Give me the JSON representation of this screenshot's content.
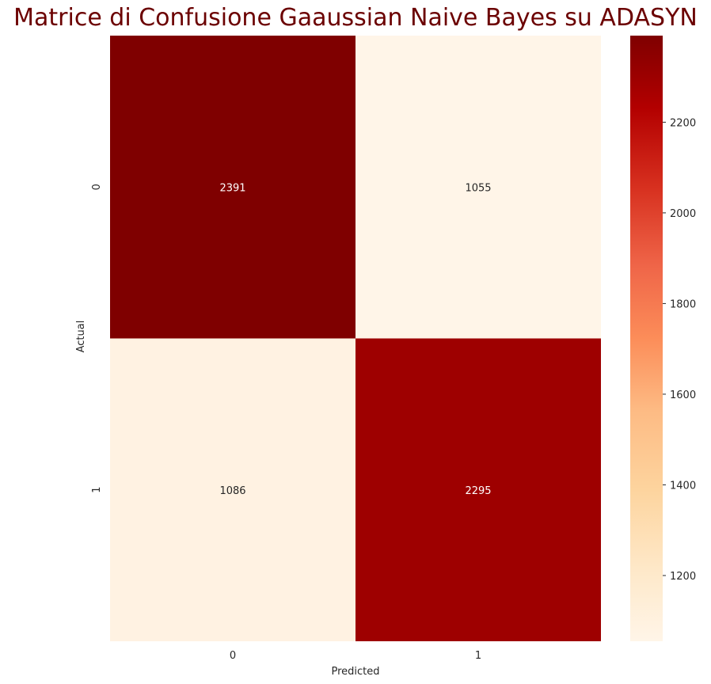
{
  "chart_data": {
    "type": "heatmap",
    "title": "Matrice di Confusione Gaaussian Naive Bayes su ADASYN",
    "title_color": "#6b0000",
    "xlabel": "Predicted",
    "ylabel": "Actual",
    "x_categories": [
      "0",
      "1"
    ],
    "y_categories": [
      "0",
      "1"
    ],
    "values": [
      [
        2391,
        1055
      ],
      [
        1086,
        2295
      ]
    ],
    "colormap": "OrRd",
    "colorbar": {
      "min": 1055,
      "max": 2391,
      "ticks": [
        "1200",
        "1400",
        "1600",
        "1800",
        "2000",
        "2200"
      ]
    },
    "grid": false
  }
}
